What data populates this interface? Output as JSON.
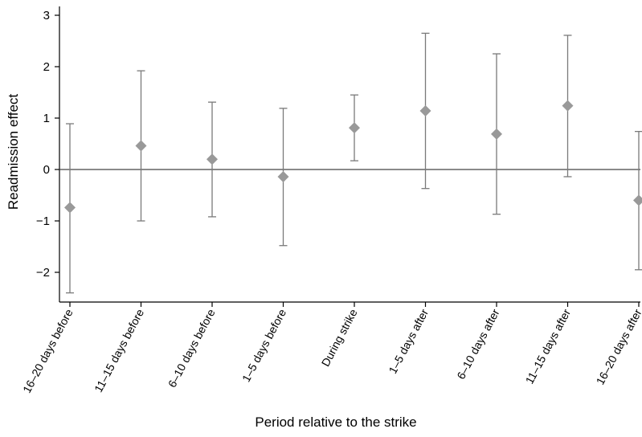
{
  "chart_data": {
    "type": "scatter",
    "xlabel": "Period relative to the strike",
    "ylabel": "Readmission effect",
    "categories": [
      "16–20 days before",
      "11–15 days before",
      "6–10 days before",
      "1–5 days before",
      "During strike",
      "1–5 days after",
      "6–10 days after",
      "11–15 days after",
      "16–20 days after"
    ],
    "values": [
      -0.74,
      0.46,
      0.2,
      -0.14,
      0.81,
      1.14,
      0.69,
      1.24,
      -0.6
    ],
    "ci_lower": [
      -2.4,
      -1.0,
      -0.92,
      -1.48,
      0.17,
      -0.37,
      -0.87,
      -0.14,
      -1.95
    ],
    "ci_upper": [
      0.89,
      1.92,
      1.31,
      1.19,
      1.45,
      2.65,
      2.25,
      2.61,
      0.74
    ],
    "ylim": [
      -2.6,
      3.2
    ],
    "yticks": [
      3,
      2,
      1,
      0,
      -1,
      -2
    ],
    "ytick_labels": [
      "3",
      "2",
      "1",
      "0",
      "−1",
      "−2"
    ],
    "reference_line_y": 0,
    "grid": false,
    "colors": {
      "marker": "#999999",
      "error_bar": "#7a7a7a",
      "axis": "#000000",
      "reference_line": "#444444"
    }
  }
}
